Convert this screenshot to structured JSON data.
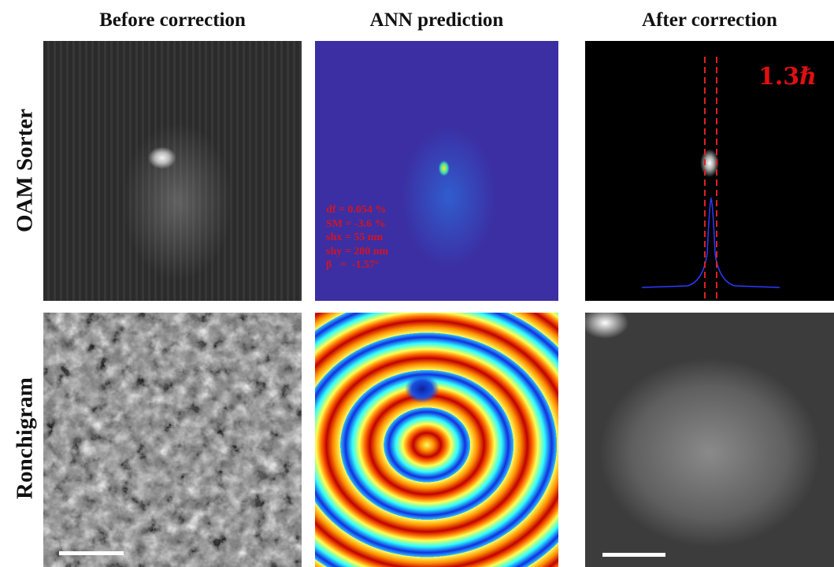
{
  "headers": {
    "columns": [
      "Before correction",
      "ANN prediction",
      "After correction"
    ]
  },
  "rows": [
    "OAM Sorter",
    "Ronchigram"
  ],
  "annotations": {
    "parameters": [
      "df = 0.054 %",
      "SM = -3.6 %",
      "shx = 55 nm",
      "shy = 280 nm",
      "β   =  -1.57°"
    ],
    "oam_value": "1.3ℏ"
  }
}
